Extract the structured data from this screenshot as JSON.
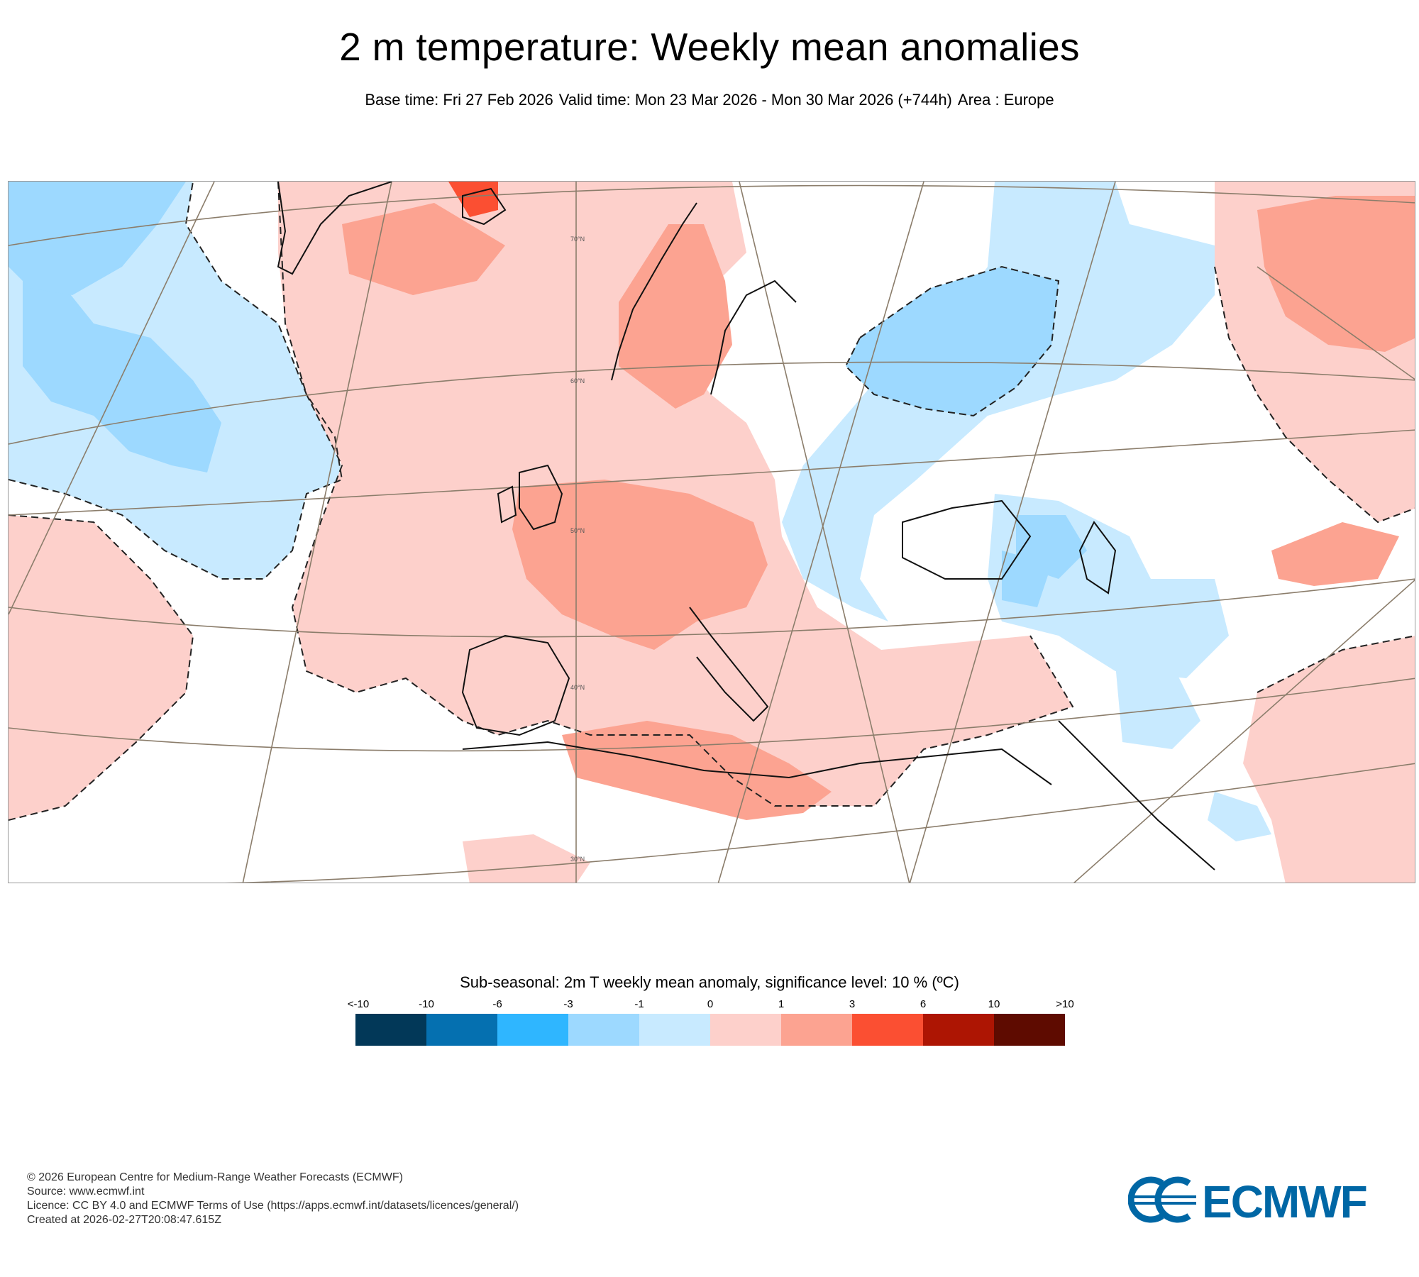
{
  "header": {
    "title": "2 m temperature: Weekly mean anomalies",
    "base_time": "Base time: Fri 27 Feb 2026",
    "valid_time": "Valid time: Mon 23 Mar 2026 - Mon 30 Mar 2026 (+744h)",
    "area": "Area : Europe"
  },
  "map": {
    "latitude_labels": [
      "70°N",
      "60°N",
      "50°N",
      "40°N",
      "30°N"
    ],
    "colors": {
      "frame": "#9a9a9a",
      "graticule": "#8b7d6b",
      "coast": "#111111",
      "border": "#666666"
    }
  },
  "legend": {
    "title": "Sub-seasonal: 2m T weekly mean anomaly, significance level: 10 % (ºC)",
    "ticks": [
      "<-10",
      "-10",
      "-6",
      "-3",
      "-1",
      "0",
      "1",
      "3",
      "6",
      "10",
      ">10"
    ],
    "colors": [
      "#023858",
      "#0570b0",
      "#2fb6ff",
      "#9dd9ff",
      "#c8eaff",
      "#fdd0cb",
      "#fca391",
      "#fb4f32",
      "#ad1503",
      "#5e0b00"
    ]
  },
  "footer": {
    "lines": [
      "© 2026 European Centre for Medium-Range Weather Forecasts (ECMWF)",
      "Source: www.ecmwf.int",
      "Licence: CC BY 4.0 and ECMWF Terms of Use (https://apps.ecmwf.int/datasets/licences/general/)",
      "Created at 2026-02-27T20:08:47.615Z"
    ]
  },
  "logo": {
    "text": "ECMWF",
    "color": "#0067a5"
  }
}
